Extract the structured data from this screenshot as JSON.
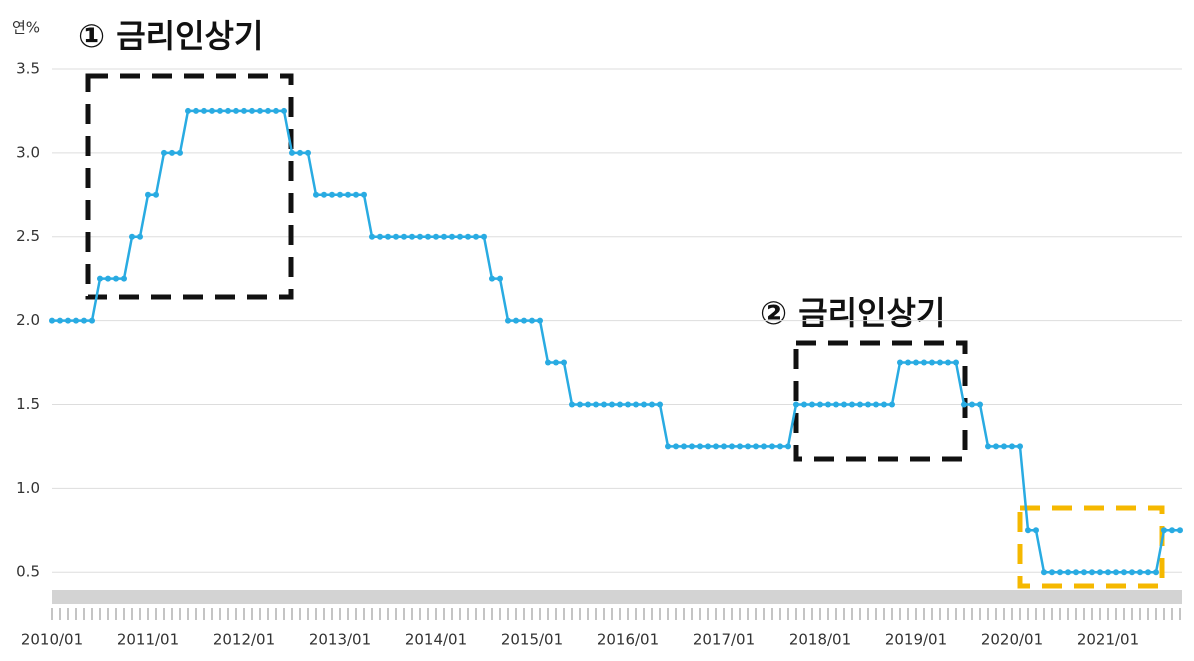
{
  "chart_data": {
    "type": "line",
    "y_label": "연%",
    "annotations": [
      "① 금리인상기",
      "② 금리인상기"
    ],
    "categories": [
      "2010/01",
      null,
      null,
      null,
      null,
      null,
      null,
      null,
      null,
      null,
      null,
      null,
      "2011/01",
      null,
      null,
      null,
      null,
      null,
      null,
      null,
      null,
      null,
      null,
      null,
      "2012/01",
      null,
      null,
      null,
      null,
      null,
      null,
      null,
      null,
      null,
      null,
      null,
      "2013/01",
      null,
      null,
      null,
      null,
      null,
      null,
      null,
      null,
      null,
      null,
      null,
      "2014/01",
      null,
      null,
      null,
      null,
      null,
      null,
      null,
      null,
      null,
      null,
      null,
      "2015/01",
      null,
      null,
      null,
      null,
      null,
      null,
      null,
      null,
      null,
      null,
      null,
      "2016/01",
      null,
      null,
      null,
      null,
      null,
      null,
      null,
      null,
      null,
      null,
      null,
      "2017/01",
      null,
      null,
      null,
      null,
      null,
      null,
      null,
      null,
      null,
      null,
      null,
      "2018/01",
      null,
      null,
      null,
      null,
      null,
      null,
      null,
      null,
      null,
      null,
      null,
      "2019/01",
      null,
      null,
      null,
      null,
      null,
      null,
      null,
      null,
      null,
      null,
      null,
      "2020/01",
      null,
      null,
      null,
      null,
      null,
      null,
      null,
      null,
      null,
      null,
      null,
      "2021/01",
      null,
      null,
      null,
      null,
      null,
      null,
      null,
      null,
      null
    ],
    "values": [
      2.0,
      2.0,
      2.0,
      2.0,
      2.0,
      2.0,
      2.25,
      2.25,
      2.25,
      2.25,
      2.5,
      2.5,
      2.75,
      2.75,
      3.0,
      3.0,
      3.0,
      3.25,
      3.25,
      3.25,
      3.25,
      3.25,
      3.25,
      3.25,
      3.25,
      3.25,
      3.25,
      3.25,
      3.25,
      3.25,
      3.0,
      3.0,
      3.0,
      2.75,
      2.75,
      2.75,
      2.75,
      2.75,
      2.75,
      2.75,
      2.5,
      2.5,
      2.5,
      2.5,
      2.5,
      2.5,
      2.5,
      2.5,
      2.5,
      2.5,
      2.5,
      2.5,
      2.5,
      2.5,
      2.5,
      2.25,
      2.25,
      2.0,
      2.0,
      2.0,
      2.0,
      2.0,
      1.75,
      1.75,
      1.75,
      1.5,
      1.5,
      1.5,
      1.5,
      1.5,
      1.5,
      1.5,
      1.5,
      1.5,
      1.5,
      1.5,
      1.5,
      1.25,
      1.25,
      1.25,
      1.25,
      1.25,
      1.25,
      1.25,
      1.25,
      1.25,
      1.25,
      1.25,
      1.25,
      1.25,
      1.25,
      1.25,
      1.25,
      1.5,
      1.5,
      1.5,
      1.5,
      1.5,
      1.5,
      1.5,
      1.5,
      1.5,
      1.5,
      1.5,
      1.5,
      1.5,
      1.75,
      1.75,
      1.75,
      1.75,
      1.75,
      1.75,
      1.75,
      1.75,
      1.5,
      1.5,
      1.5,
      1.25,
      1.25,
      1.25,
      1.25,
      1.25,
      0.75,
      0.75,
      0.5,
      0.5,
      0.5,
      0.5,
      0.5,
      0.5,
      0.5,
      0.5,
      0.5,
      0.5,
      0.5,
      0.5,
      0.5,
      0.5,
      0.5,
      0.75,
      0.75,
      0.75
    ],
    "color": "#29abe2",
    "ylim": [
      0.4,
      3.5
    ],
    "yticks": [
      0.5,
      {
        "value": 1,
        "label": "1.0"
      },
      1.5,
      {
        "value": 2,
        "label": "2.0"
      },
      2.5,
      {
        "value": 3,
        "label": "3.0"
      },
      3.5
    ],
    "grid": true
  }
}
